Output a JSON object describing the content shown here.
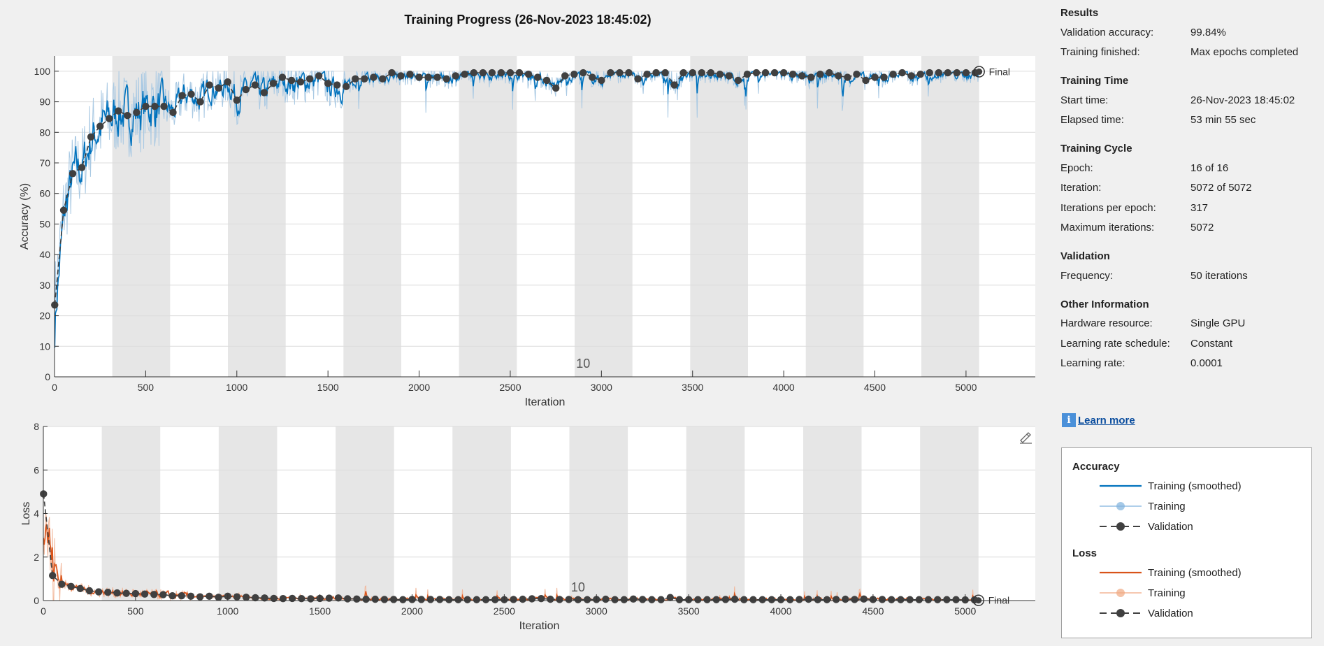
{
  "title": "Training Progress (26-Nov-2023 18:45:02)",
  "chart_data": [
    {
      "type": "line",
      "name": "accuracy",
      "xlabel": "Iteration",
      "ylabel": "Accuracy (%)",
      "xlim": [
        0,
        5380
      ],
      "ylim": [
        0,
        105
      ],
      "xticks": [
        0,
        500,
        1000,
        1500,
        2000,
        2500,
        3000,
        3500,
        4000,
        4500,
        5000
      ],
      "yticks": [
        0,
        10,
        20,
        30,
        40,
        50,
        60,
        70,
        80,
        90,
        100
      ],
      "epoch_length": 317,
      "epochs": 16,
      "epoch_marker_label": "10",
      "epoch_marker_x": 2900,
      "final_label": "Final",
      "final_value": 99.84,
      "series": [
        {
          "name": "Validation",
          "x": [
            1,
            50,
            100,
            150,
            200,
            250,
            300,
            350,
            400,
            450,
            500,
            550,
            600,
            650,
            700,
            750,
            800,
            850,
            900,
            950,
            1000,
            1050,
            1100,
            1150,
            1200,
            1250,
            1300,
            1350,
            1400,
            1450,
            1500,
            1550,
            1600,
            1650,
            1700,
            1750,
            1800,
            1850,
            1900,
            1950,
            2000,
            2050,
            2100,
            2150,
            2200,
            2250,
            2300,
            2350,
            2400,
            2450,
            2500,
            2550,
            2600,
            2650,
            2700,
            2750,
            2800,
            2850,
            2900,
            2950,
            3000,
            3050,
            3100,
            3150,
            3200,
            3250,
            3300,
            3350,
            3400,
            3450,
            3500,
            3550,
            3600,
            3650,
            3700,
            3750,
            3800,
            3850,
            3900,
            3950,
            4000,
            4050,
            4100,
            4150,
            4200,
            4250,
            4300,
            4350,
            4400,
            4450,
            4500,
            4550,
            4600,
            4650,
            4700,
            4750,
            4800,
            4850,
            4900,
            4950,
            5000,
            5050,
            5072
          ],
          "y": [
            23.5,
            54.5,
            66.5,
            68.5,
            78.5,
            82,
            84.5,
            87,
            85.5,
            86.5,
            88.5,
            88.5,
            88.5,
            86.5,
            92,
            92.5,
            90,
            95.5,
            94.5,
            96.5,
            90.5,
            94,
            95.5,
            93,
            96,
            98,
            97,
            96.5,
            97.5,
            98.5,
            96,
            95.5,
            95,
            97.5,
            97.5,
            98,
            97.5,
            99.5,
            98.5,
            99,
            98,
            98,
            98,
            97.5,
            98.5,
            99,
            99.5,
            99.5,
            99.5,
            99.5,
            99.5,
            99.5,
            99,
            98,
            97,
            94.5,
            98.5,
            99,
            99.5,
            98,
            97,
            99.5,
            99.5,
            99.5,
            97.5,
            99,
            99.5,
            99.5,
            95.5,
            99.5,
            99.5,
            99.5,
            99.5,
            99,
            98.5,
            97,
            99,
            99.5,
            99.5,
            99.5,
            99.5,
            99,
            98.5,
            98,
            99,
            99.5,
            98.5,
            98,
            99,
            97,
            98,
            98,
            99,
            99.5,
            98.5,
            99,
            99.5,
            99.5,
            99.5,
            99.5,
            99.5,
            99.5,
            99.84
          ]
        }
      ]
    },
    {
      "type": "line",
      "name": "loss",
      "xlabel": "Iteration",
      "ylabel": "Loss",
      "xlim": [
        0,
        5380
      ],
      "ylim": [
        0,
        8
      ],
      "xticks": [
        0,
        500,
        1000,
        1500,
        2000,
        2500,
        3000,
        3500,
        4000,
        4500,
        5000
      ],
      "yticks": [
        0,
        2,
        4,
        6,
        8
      ],
      "epoch_marker_label": "10",
      "epoch_marker_x": 2900,
      "final_label": "Final",
      "final_value": 0.01,
      "series": [
        {
          "name": "Validation",
          "x": [
            1,
            50,
            100,
            150,
            200,
            250,
            300,
            350,
            400,
            450,
            500,
            550,
            600,
            650,
            700,
            750,
            800,
            850,
            900,
            950,
            1000,
            1050,
            1100,
            1150,
            1200,
            1250,
            1300,
            1350,
            1400,
            1450,
            1500,
            1550,
            1600,
            1650,
            1700,
            1750,
            1800,
            1850,
            1900,
            1950,
            2000,
            2050,
            2100,
            2150,
            2200,
            2250,
            2300,
            2350,
            2400,
            2450,
            2500,
            2550,
            2600,
            2650,
            2700,
            2750,
            2800,
            2850,
            2900,
            2950,
            3000,
            3050,
            3100,
            3150,
            3200,
            3250,
            3300,
            3350,
            3400,
            3450,
            3500,
            3550,
            3600,
            3650,
            3700,
            3750,
            3800,
            3850,
            3900,
            3950,
            4000,
            4050,
            4100,
            4150,
            4200,
            4250,
            4300,
            4350,
            4400,
            4450,
            4500,
            4550,
            4600,
            4650,
            4700,
            4750,
            4800,
            4850,
            4900,
            4950,
            5000,
            5050,
            5072
          ],
          "y": [
            4.9,
            1.15,
            0.75,
            0.65,
            0.55,
            0.45,
            0.4,
            0.38,
            0.35,
            0.33,
            0.32,
            0.3,
            0.28,
            0.27,
            0.22,
            0.22,
            0.2,
            0.17,
            0.2,
            0.15,
            0.2,
            0.17,
            0.15,
            0.13,
            0.12,
            0.1,
            0.09,
            0.1,
            0.09,
            0.08,
            0.1,
            0.11,
            0.12,
            0.08,
            0.07,
            0.06,
            0.06,
            0.05,
            0.05,
            0.04,
            0.05,
            0.05,
            0.05,
            0.05,
            0.04,
            0.04,
            0.04,
            0.04,
            0.04,
            0.04,
            0.04,
            0.05,
            0.06,
            0.08,
            0.09,
            0.06,
            0.05,
            0.05,
            0.04,
            0.04,
            0.05,
            0.06,
            0.04,
            0.04,
            0.07,
            0.05,
            0.04,
            0.04,
            0.14,
            0.04,
            0.04,
            0.04,
            0.04,
            0.04,
            0.05,
            0.06,
            0.04,
            0.04,
            0.04,
            0.04,
            0.04,
            0.04,
            0.05,
            0.06,
            0.04,
            0.04,
            0.05,
            0.06,
            0.05,
            0.07,
            0.05,
            0.05,
            0.04,
            0.04,
            0.04,
            0.04,
            0.04,
            0.04,
            0.04,
            0.04,
            0.03,
            0.03,
            0.01
          ]
        }
      ]
    }
  ],
  "info": {
    "sections": [
      {
        "title": "Results",
        "rows": [
          {
            "k": "Validation accuracy:",
            "v": "99.84%"
          },
          {
            "k": "Training finished:",
            "v": "Max epochs completed"
          }
        ]
      },
      {
        "title": "Training Time",
        "rows": [
          {
            "k": "Start time:",
            "v": "26-Nov-2023 18:45:02"
          },
          {
            "k": "Elapsed time:",
            "v": "53 min 55 sec"
          }
        ]
      },
      {
        "title": "Training Cycle",
        "rows": [
          {
            "k": "Epoch:",
            "v": "16 of 16"
          },
          {
            "k": "Iteration:",
            "v": "5072 of 5072"
          },
          {
            "k": "Iterations per epoch:",
            "v": "317"
          },
          {
            "k": "Maximum iterations:",
            "v": "5072"
          }
        ]
      },
      {
        "title": "Validation",
        "rows": [
          {
            "k": "Frequency:",
            "v": "50 iterations"
          }
        ]
      },
      {
        "title": "Other Information",
        "rows": [
          {
            "k": "Hardware resource:",
            "v": "Single GPU"
          },
          {
            "k": "Learning rate schedule:",
            "v": "Constant"
          },
          {
            "k": "Learning rate:",
            "v": "0.0001"
          }
        ]
      }
    ]
  },
  "learn_more": {
    "icon": "info-icon",
    "label": "Learn more"
  },
  "legend": {
    "groups": [
      {
        "title": "Accuracy",
        "items": [
          {
            "label": "Training (smoothed)",
            "style": "solid",
            "color": "#0072bd"
          },
          {
            "label": "Training",
            "style": "light-dot",
            "color": "#7fb2dd"
          },
          {
            "label": "Validation",
            "style": "dashed-dot",
            "color": "#404040"
          }
        ]
      },
      {
        "title": "Loss",
        "items": [
          {
            "label": "Training (smoothed)",
            "style": "solid",
            "color": "#d95319"
          },
          {
            "label": "Training",
            "style": "light-dot",
            "color": "#f0a880"
          },
          {
            "label": "Validation",
            "style": "dashed-dot",
            "color": "#404040"
          }
        ]
      }
    ]
  },
  "colors": {
    "acc_smoothed": "#0072bd",
    "acc_raw": "#a9c9e3",
    "loss_smoothed": "#d95319",
    "loss_raw": "#f2b79a",
    "validation": "#404040",
    "epoch_band": "#e6e6e6",
    "grid": "#dcdcdc"
  }
}
